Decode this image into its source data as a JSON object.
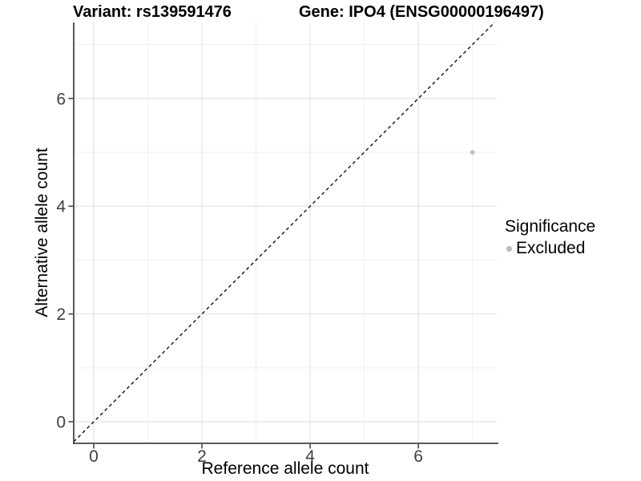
{
  "titles": {
    "variant": "Variant: rs139591476",
    "gene": "Gene: IPO4 (ENSG00000196497)"
  },
  "axes": {
    "x_label": "Reference allele count",
    "y_label": "Alternative allele count"
  },
  "legend": {
    "title": "Significance",
    "items": [
      {
        "label": "Excluded",
        "color": "#bdbdbd"
      }
    ]
  },
  "chart_data": {
    "type": "scatter",
    "points": [
      {
        "x": 7,
        "y": 5,
        "series": "Excluded",
        "color": "#bdbdbd"
      }
    ],
    "xlabel": "Reference allele count",
    "ylabel": "Alternative allele count",
    "x_ticks": [
      0,
      2,
      4,
      6
    ],
    "y_ticks": [
      0,
      2,
      4,
      6
    ],
    "x_minor_ticks": [
      1,
      3,
      5,
      7
    ],
    "y_minor_ticks": [
      1,
      3,
      5,
      7
    ],
    "xlim": [
      -0.37,
      7.45
    ],
    "ylim": [
      -0.4,
      7.41
    ],
    "grid": "on",
    "legend_position": "right",
    "reference_line": {
      "type": "identity y=x",
      "style": "dashed",
      "color": "#000000"
    }
  },
  "colors": {
    "background": "#ffffff",
    "axis_line": "#464646",
    "grid_major": "#e3e3e3",
    "grid_minor": "#efefef",
    "tick_text": "#404040",
    "point": "#bdbdbd"
  }
}
